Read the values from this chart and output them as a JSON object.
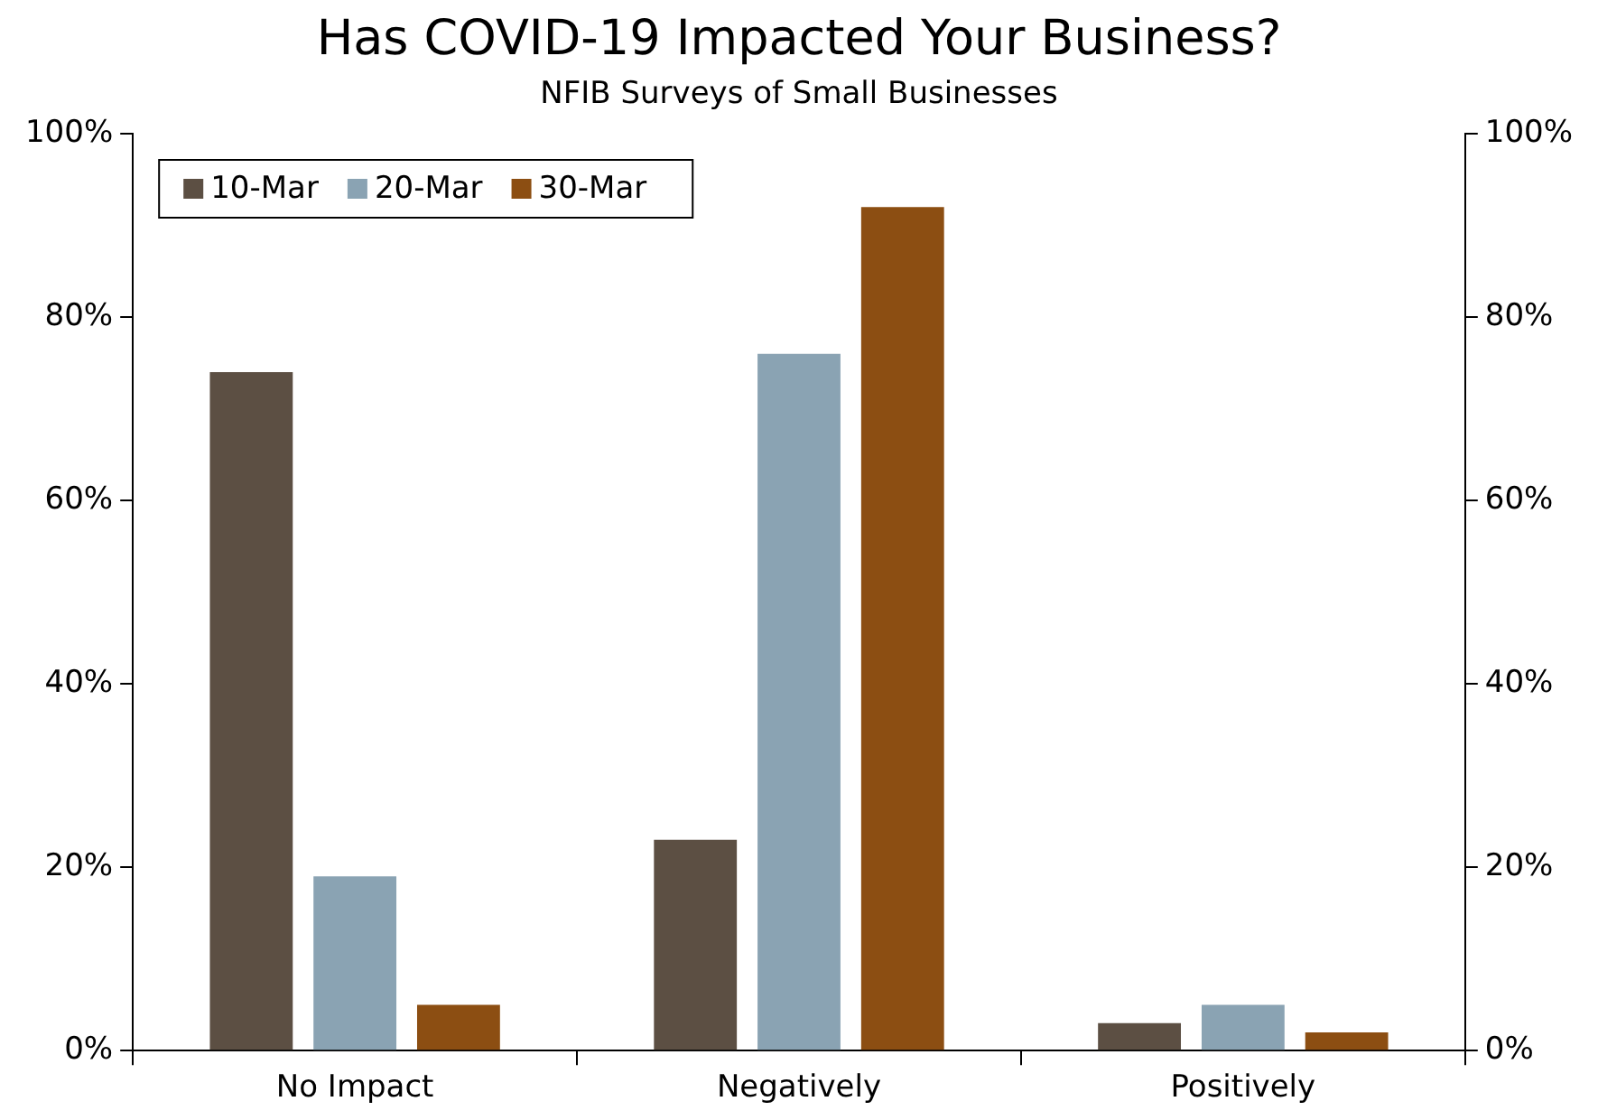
{
  "chart_data": {
    "type": "bar",
    "title": "Has COVID-19 Impacted Your Business?",
    "subtitle": "NFIB Surveys of Small Businesses",
    "categories": [
      "No Impact",
      "Negatively",
      "Positively"
    ],
    "series": [
      {
        "name": "10-Mar",
        "color": "#5c4f43",
        "values": [
          74,
          23,
          3
        ]
      },
      {
        "name": "20-Mar",
        "color": "#8aa3b3",
        "values": [
          19,
          76,
          5
        ]
      },
      {
        "name": "30-Mar",
        "color": "#8c4e12",
        "values": [
          5,
          92,
          2
        ]
      }
    ],
    "ylim": [
      0,
      100
    ],
    "yticks": [
      {
        "value": 0,
        "label": "0%"
      },
      {
        "value": 20,
        "label": "20%"
      },
      {
        "value": 40,
        "label": "40%"
      },
      {
        "value": 60,
        "label": "60%"
      },
      {
        "value": 80,
        "label": "80%"
      },
      {
        "value": 100,
        "label": "100%"
      }
    ],
    "y2lim": [
      0,
      100
    ],
    "y2ticks": [
      {
        "value": 0,
        "label": "0%"
      },
      {
        "value": 20,
        "label": "20%"
      },
      {
        "value": 40,
        "label": "40%"
      },
      {
        "value": 60,
        "label": "60%"
      },
      {
        "value": 80,
        "label": "80%"
      },
      {
        "value": 100,
        "label": "100%"
      }
    ],
    "grid": false,
    "legend": "top left"
  }
}
